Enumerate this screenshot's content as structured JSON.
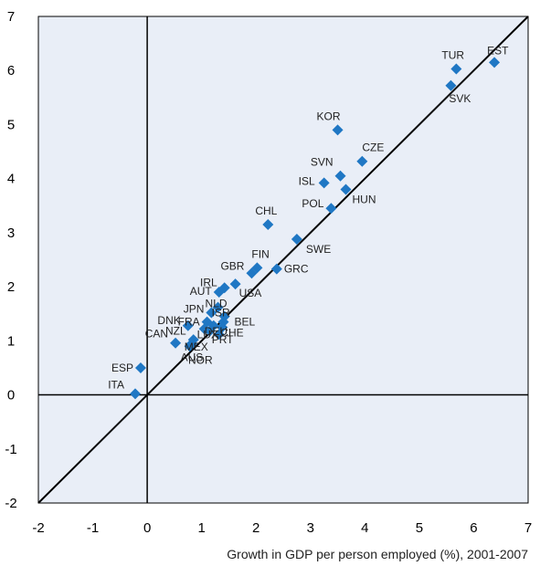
{
  "chart_data": {
    "type": "scatter",
    "title": "",
    "xlabel": "Growth in GDP per person employed (%), 2001-2007",
    "ylabel": "",
    "xlim": [
      -2,
      7
    ],
    "ylim": [
      -2,
      7
    ],
    "x_ticks": [
      "-2",
      "-1",
      "0",
      "1",
      "2",
      "3",
      "4",
      "5",
      "6",
      "7"
    ],
    "y_ticks": [
      "-2",
      "-1",
      "0",
      "1",
      "2",
      "3",
      "4",
      "5",
      "6",
      "7"
    ],
    "grid": false,
    "reference_lines": [
      "x = 0",
      "y = 0",
      "y = x"
    ],
    "marker_color": "#1f77c4",
    "plot_background": "#e9eef7",
    "points": [
      {
        "label": "EST",
        "x": 6.38,
        "y": 6.15
      },
      {
        "label": "TUR",
        "x": 5.68,
        "y": 6.03
      },
      {
        "label": "SVK",
        "x": 5.58,
        "y": 5.72
      },
      {
        "label": "KOR",
        "x": 3.5,
        "y": 4.9
      },
      {
        "label": "CZE",
        "x": 3.95,
        "y": 4.32
      },
      {
        "label": "SVN",
        "x": 3.55,
        "y": 4.05
      },
      {
        "label": "ISL",
        "x": 3.25,
        "y": 3.92
      },
      {
        "label": "HUN",
        "x": 3.65,
        "y": 3.8
      },
      {
        "label": "POL",
        "x": 3.38,
        "y": 3.45
      },
      {
        "label": "CHL",
        "x": 2.22,
        "y": 3.15
      },
      {
        "label": "SWE",
        "x": 2.75,
        "y": 2.88
      },
      {
        "label": "FIN",
        "x": 2.02,
        "y": 2.35
      },
      {
        "label": "GBR",
        "x": 1.92,
        "y": 2.25
      },
      {
        "label": "GRC",
        "x": 2.38,
        "y": 2.33
      },
      {
        "label": "USA",
        "x": 1.62,
        "y": 2.05
      },
      {
        "label": "IRL",
        "x": 1.42,
        "y": 1.98
      },
      {
        "label": "AUT",
        "x": 1.32,
        "y": 1.9
      },
      {
        "label": "NLD",
        "x": 1.3,
        "y": 1.62
      },
      {
        "label": "JPN",
        "x": 1.18,
        "y": 1.52
      },
      {
        "label": "ISR",
        "x": 1.42,
        "y": 1.45
      },
      {
        "label": "BEL",
        "x": 1.4,
        "y": 1.35
      },
      {
        "label": "DNK",
        "x": 0.75,
        "y": 1.28
      },
      {
        "label": "FRA",
        "x": 1.1,
        "y": 1.35
      },
      {
        "label": "DEU",
        "x": 1.22,
        "y": 1.28
      },
      {
        "label": "CHE",
        "x": 1.38,
        "y": 1.25
      },
      {
        "label": "LUX",
        "x": 1.15,
        "y": 1.18
      },
      {
        "label": "PRT",
        "x": 1.32,
        "y": 1.12
      },
      {
        "label": "NZL",
        "x": 1.05,
        "y": 1.22
      },
      {
        "label": "CAN",
        "x": 0.52,
        "y": 0.96
      },
      {
        "label": "MEX",
        "x": 0.85,
        "y": 1.02
      },
      {
        "label": "NOR",
        "x": 0.82,
        "y": 0.95
      },
      {
        "label": "AUS",
        "x": 0.78,
        "y": 0.9
      },
      {
        "label": "ESP",
        "x": -0.12,
        "y": 0.5
      },
      {
        "label": "ITA",
        "x": -0.22,
        "y": 0.02
      }
    ]
  }
}
